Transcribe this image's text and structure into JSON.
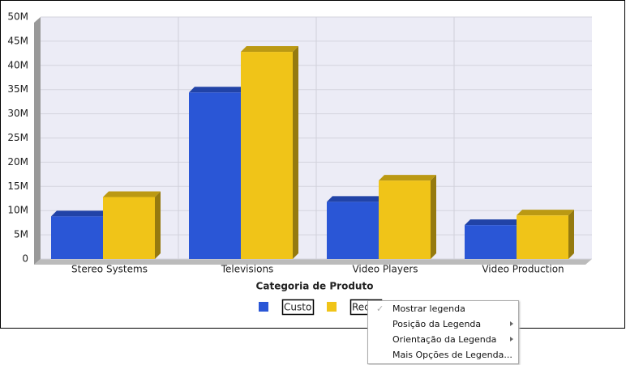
{
  "chart_data": {
    "type": "bar",
    "x_label": "Categoria de Produto",
    "categories": [
      "Stereo Systems",
      "Televisions",
      "Video Players",
      "Video Production"
    ],
    "series": [
      {
        "name": "Custo",
        "color": "#2a56d6",
        "values": [
          8800000,
          34400000,
          11800000,
          7000000
        ]
      },
      {
        "name": "Receita",
        "color": "#f0c418",
        "values": [
          12800000,
          42800000,
          16200000,
          9000000
        ]
      }
    ],
    "ylim": [
      0,
      50000000
    ],
    "yticks": [
      0,
      {
        "value": 5000000,
        "label": "5M"
      },
      {
        "value": 10000000,
        "label": "10M"
      },
      {
        "value": 15000000,
        "label": "15M"
      },
      {
        "value": 20000000,
        "label": "20M"
      },
      {
        "value": 25000000,
        "label": "25M"
      },
      {
        "value": 30000000,
        "label": "30M"
      },
      {
        "value": 35000000,
        "label": "35M"
      },
      {
        "value": 40000000,
        "label": "40M"
      },
      {
        "value": 45000000,
        "label": "45M"
      },
      {
        "value": 50000000,
        "label": "50M"
      }
    ],
    "grid": true
  },
  "context_menu": {
    "items": [
      "Mostrar legenda",
      "Posição da Legenda",
      "Orientação da Legenda",
      "Mais Opções de Legenda..."
    ]
  }
}
